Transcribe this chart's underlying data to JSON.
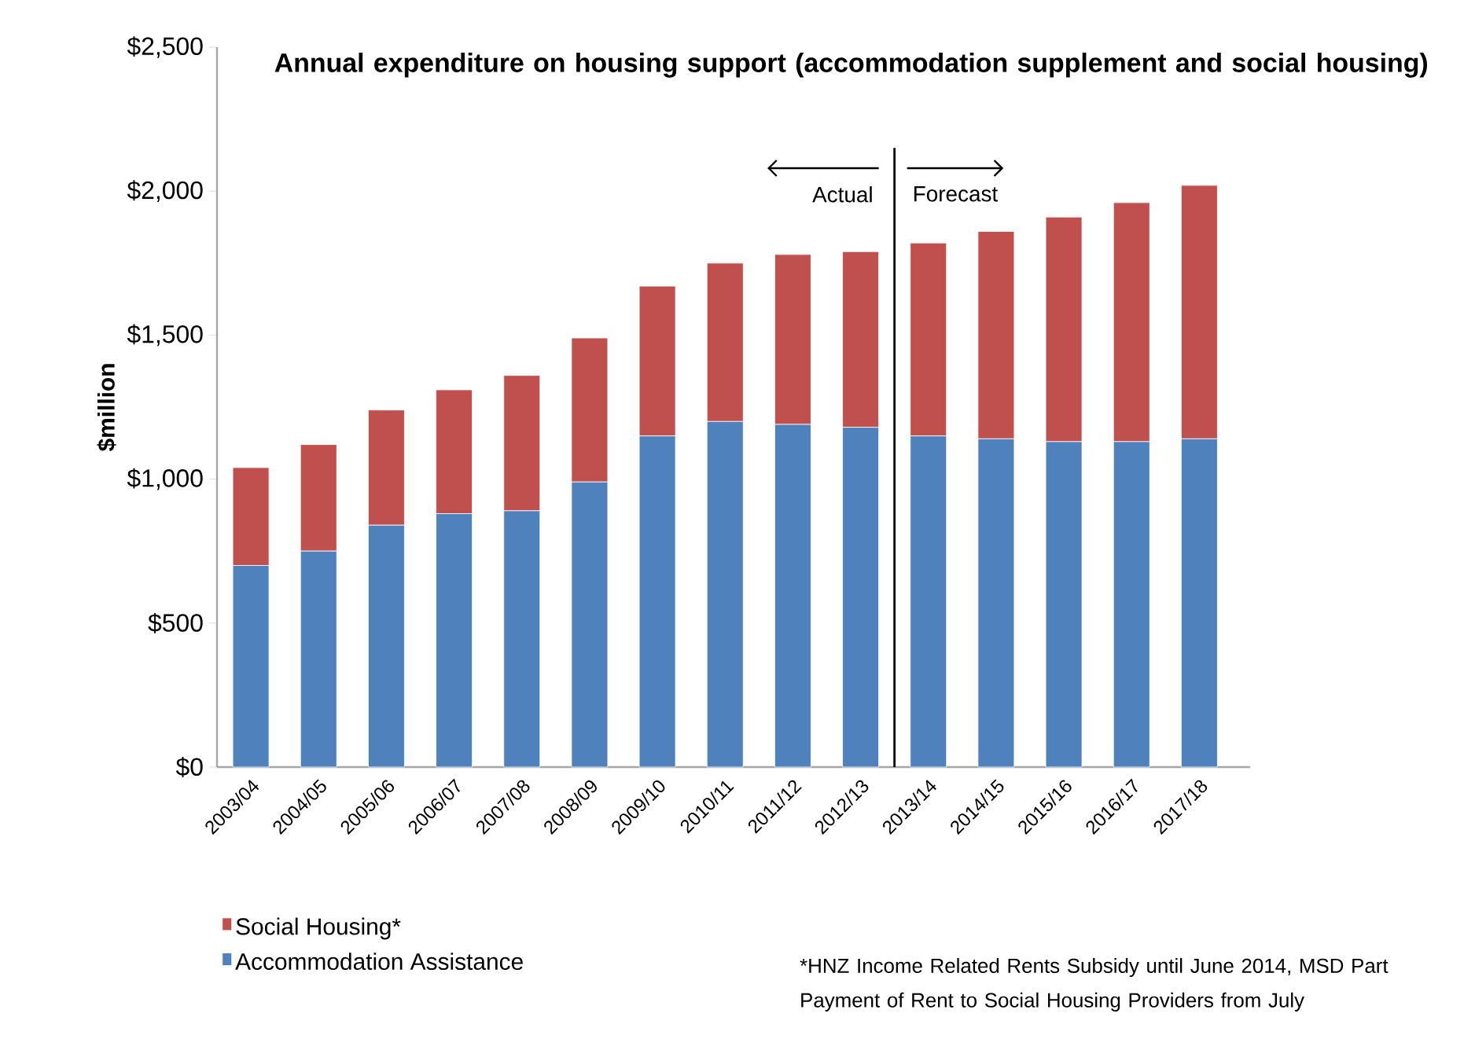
{
  "chart_data": {
    "type": "bar",
    "stacked": true,
    "title": "Annual expenditure on housing support (accommodation supplement and social housing)",
    "ylabel": "$million",
    "categories": [
      "2003/04",
      "2004/05",
      "2005/06",
      "2006/07",
      "2007/08",
      "2008/09",
      "2009/10",
      "2010/11",
      "2011/12",
      "2012/13",
      "2013/14",
      "2014/15",
      "2015/16",
      "2016/17",
      "2017/18"
    ],
    "series": [
      {
        "name": "Accommodation Assistance",
        "color": "#4f81bd",
        "values": [
          700,
          750,
          840,
          880,
          890,
          990,
          1150,
          1200,
          1190,
          1180,
          1150,
          1140,
          1130,
          1130,
          1140
        ]
      },
      {
        "name": "Social Housing*",
        "color": "#c0504d",
        "values": [
          340,
          370,
          400,
          430,
          470,
          500,
          520,
          550,
          590,
          610,
          670,
          720,
          780,
          830,
          880
        ]
      }
    ],
    "ylim": [
      0,
      2500
    ],
    "yticks": [
      {
        "value": 0,
        "label": "$0"
      },
      {
        "value": 500,
        "label": "$500"
      },
      {
        "value": 1000,
        "label": "$1,000"
      },
      {
        "value": 1500,
        "label": "$1,500"
      },
      {
        "value": 2000,
        "label": "$2,000"
      },
      {
        "value": 2500,
        "label": "$2,500"
      }
    ],
    "annotations": [
      "Actual",
      "Forecast",
      "*HNZ Income Related Rents Subsidy until June 2014, MSD Part Payment of Rent to Social Housing Providers from July"
    ],
    "legend": "bottom",
    "grid": false
  }
}
